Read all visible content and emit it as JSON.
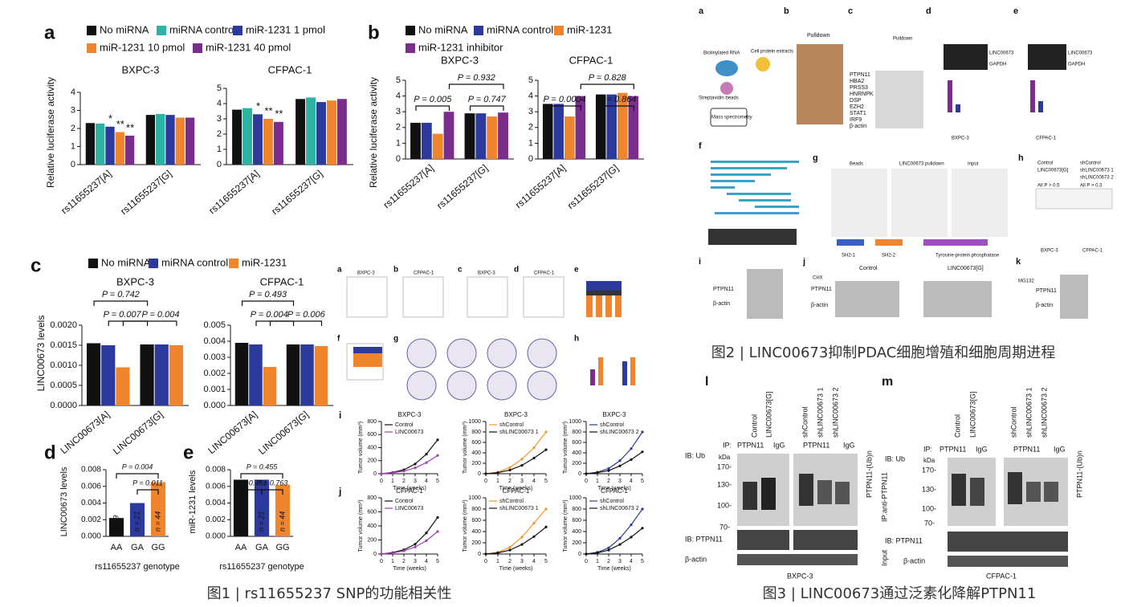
{
  "chart_data": [
    {
      "type": "grouped-bar",
      "label": "a",
      "ylabel": "Relative luciferase activity",
      "categories": [
        "rs11655237[A]",
        "rs11655237[G]"
      ],
      "series": [
        {
          "name": "No miRNA",
          "color": "#111111"
        },
        {
          "name": "miRNA control",
          "color": "#2bb3a3"
        },
        {
          "name": "miR-1231 1 pmol",
          "color": "#2b3a9c"
        },
        {
          "name": "miR-1231 10 pmol",
          "color": "#f0852d"
        },
        {
          "name": "miR-1231 40 pmol",
          "color": "#7a2d8c"
        }
      ],
      "subplots": [
        {
          "title": "BXPC-3",
          "ylim": [
            0,
            4
          ],
          "yticks": [
            0,
            1,
            2,
            3,
            4
          ],
          "values": [
            [
              2.3,
              2.27,
              2.1,
              1.8,
              1.6
            ],
            [
              2.75,
              2.8,
              2.75,
              2.6,
              2.6
            ]
          ],
          "stars": [
            [
              null,
              null,
              "*",
              "**",
              "**"
            ],
            [
              null,
              null,
              null,
              null,
              null
            ]
          ]
        },
        {
          "title": "CFPAC-1",
          "ylim": [
            0,
            5
          ],
          "yticks": [
            0,
            1,
            2,
            3,
            4,
            5
          ],
          "values": [
            [
              3.6,
              3.7,
              3.3,
              3.0,
              2.8
            ],
            [
              4.3,
              4.4,
              4.1,
              4.2,
              4.3
            ]
          ],
          "stars": [
            [
              null,
              null,
              "*",
              "**",
              "**"
            ],
            [
              null,
              null,
              null,
              null,
              null
            ]
          ]
        }
      ]
    },
    {
      "type": "grouped-bar",
      "label": "b",
      "ylabel": "Relative luciferase activity",
      "categories": [
        "rs11655237[A]",
        "rs11655237[G]"
      ],
      "series": [
        {
          "name": "No miRNA",
          "color": "#111111"
        },
        {
          "name": "miRNA control",
          "color": "#2b3a9c"
        },
        {
          "name": "miR-1231",
          "color": "#f0852d"
        },
        {
          "name": "miR-1231 inhibitor",
          "color": "#7a2d8c"
        }
      ],
      "subplots": [
        {
          "title": "BXPC-3",
          "ylim": [
            0,
            5
          ],
          "yticks": [
            0,
            1,
            2,
            3,
            4,
            5
          ],
          "values": [
            [
              2.3,
              2.3,
              1.6,
              3.0
            ],
            [
              2.9,
              2.9,
              2.7,
              2.95
            ]
          ],
          "annotations": [
            "P = 0.005",
            "P = 0.747",
            "P = 0.932"
          ]
        },
        {
          "title": "CFPAC-1",
          "ylim": [
            0,
            5
          ],
          "yticks": [
            0,
            1,
            2,
            3,
            4,
            5
          ],
          "values": [
            [
              3.5,
              3.5,
              2.7,
              4.0
            ],
            [
              4.1,
              4.1,
              4.2,
              4.0
            ]
          ],
          "annotations": [
            "P = 0.0004",
            "P = 0.864",
            "P = 0.828"
          ]
        }
      ]
    },
    {
      "type": "grouped-bar",
      "label": "c",
      "ylabel": "LINC00673 levels",
      "categories": [
        "LINC00673[A]",
        "LINC00673[G]"
      ],
      "series": [
        {
          "name": "No miRNA",
          "color": "#111111"
        },
        {
          "name": "miRNA control",
          "color": "#2b3a9c"
        },
        {
          "name": "miR-1231",
          "color": "#f0852d"
        }
      ],
      "subplots": [
        {
          "title": "BXPC-3",
          "ylim": [
            0,
            0.002
          ],
          "yticks": [
            {
              "value": 0,
              "label": "0.0000"
            },
            0.0005,
            {
              "value": 0.001,
              "label": "0.0010"
            },
            0.0015,
            {
              "value": 0.002,
              "label": "0.0020"
            }
          ],
          "values": [
            [
              0.00155,
              0.0015,
              0.00095
            ],
            [
              0.00152,
              0.00152,
              0.0015
            ]
          ],
          "annotations": [
            "P = 0.742",
            "P = 0.007",
            "P = 0.004"
          ]
        },
        {
          "title": "CFPAC-1",
          "ylim": [
            0,
            0.005
          ],
          "yticks": [
            {
              "value": 0,
              "label": "0.000"
            },
            0.001,
            0.002,
            0.003,
            0.004,
            0.005
          ],
          "values": [
            [
              0.0039,
              0.0038,
              0.0024
            ],
            [
              0.0038,
              0.0038,
              0.0037
            ]
          ],
          "annotations": [
            "P = 0.493",
            "P = 0.004",
            "P = 0.006"
          ]
        }
      ]
    },
    {
      "type": "bar",
      "label": "d",
      "ylabel": "LINC00673 levels",
      "xlabel": "rs11655237 genotype",
      "categories": [
        "AA",
        "GA",
        "GG"
      ],
      "colors": [
        "#111111",
        "#2b3a9c",
        "#f0852d"
      ],
      "values": [
        0.0022,
        0.004,
        0.0065
      ],
      "bar_labels": [
        "n = 9",
        "n = 21",
        "n = 44"
      ],
      "ylim": [
        0,
        0.008
      ],
      "yticks": [
        {
          "value": 0,
          "label": "0.000"
        },
        0.002,
        0.004,
        0.006,
        0.008
      ],
      "annotations": [
        "P = 0.004",
        "P = 0.011"
      ]
    },
    {
      "type": "bar",
      "label": "e",
      "ylabel": "miR-1231 levels",
      "xlabel": "rs11655237 genotype",
      "categories": [
        "AA",
        "GA",
        "GG"
      ],
      "colors": [
        "#111111",
        "#2b3a9c",
        "#f0852d"
      ],
      "values": [
        0.0068,
        0.0068,
        0.0062
      ],
      "bar_labels": [
        "n = 9",
        "n = 21",
        "n = 44"
      ],
      "ylim": [
        0,
        0.008
      ],
      "yticks": [
        {
          "value": 0,
          "label": "0.000"
        },
        0.002,
        0.004,
        0.006,
        0.008
      ],
      "annotations": [
        "P = 0.455",
        "P = 0.751",
        "P = 0.763"
      ]
    },
    {
      "type": "line",
      "title": "BXPC-3",
      "xlabel": "Time (weeks)",
      "ylabel": "Tumor volume (mm³)",
      "x": [
        0,
        1,
        2,
        3,
        4,
        5
      ],
      "xlim": [
        0,
        5
      ],
      "xticks": [
        0,
        1,
        2,
        3,
        4,
        5
      ],
      "ylim": [
        0,
        800
      ],
      "yticks": [
        0,
        200,
        400,
        600,
        800
      ],
      "series": [
        {
          "name": "Control",
          "color": "#111111",
          "values": [
            0,
            20,
            60,
            150,
            300,
            520
          ]
        },
        {
          "name": "LINC00673",
          "color": "#a23fb5",
          "values": [
            0,
            15,
            40,
            90,
            170,
            280
          ]
        }
      ]
    },
    {
      "type": "line",
      "title": "BXPC-3",
      "xlabel": "Time (weeks)",
      "ylabel": "Tumor volume (mm³)",
      "x": [
        0,
        1,
        2,
        3,
        4,
        5
      ],
      "xlim": [
        0,
        5
      ],
      "xticks": [
        0,
        1,
        2,
        3,
        4,
        5
      ],
      "ylim": [
        0,
        1000
      ],
      "yticks": [
        0,
        200,
        400,
        600,
        800,
        1000
      ],
      "series": [
        {
          "name": "shControl",
          "color": "#f0952d",
          "values": [
            0,
            30,
            120,
            280,
            500,
            800
          ]
        },
        {
          "name": "shLINC00673 1",
          "color": "#111111",
          "values": [
            0,
            20,
            70,
            160,
            300,
            460
          ]
        }
      ]
    },
    {
      "type": "line",
      "title": "BXPC-3",
      "xlabel": "Time (weeks)",
      "ylabel": "Tumor volume (mm³)",
      "x": [
        0,
        1,
        2,
        3,
        4,
        5
      ],
      "xlim": [
        0,
        5
      ],
      "xticks": [
        0,
        1,
        2,
        3,
        4,
        5
      ],
      "ylim": [
        0,
        1000
      ],
      "yticks": [
        0,
        200,
        400,
        600,
        800,
        1000
      ],
      "series": [
        {
          "name": "shControl",
          "color": "#2b3a9c",
          "values": [
            0,
            30,
            100,
            250,
            480,
            800
          ]
        },
        {
          "name": "shLINC00673 2",
          "color": "#111111",
          "values": [
            0,
            20,
            60,
            150,
            270,
            420
          ]
        }
      ]
    },
    {
      "type": "line",
      "title": "CFPAC-1",
      "xlabel": "Time (weeks)",
      "ylabel": "Tumor volume (mm³)",
      "x": [
        0,
        1,
        2,
        3,
        4,
        5
      ],
      "xlim": [
        0,
        5
      ],
      "xticks": [
        0,
        1,
        2,
        3,
        4,
        5
      ],
      "ylim": [
        0,
        800
      ],
      "yticks": [
        0,
        200,
        400,
        600,
        800
      ],
      "series": [
        {
          "name": "Control",
          "color": "#111111",
          "values": [
            0,
            20,
            60,
            140,
            300,
            520
          ]
        },
        {
          "name": "LINC00673",
          "color": "#a23fb5",
          "values": [
            0,
            15,
            45,
            100,
            190,
            320
          ]
        }
      ]
    },
    {
      "type": "line",
      "title": "CFPAC-1",
      "xlabel": "Time (weeks)",
      "ylabel": "Tumor volume (mm³)",
      "x": [
        0,
        1,
        2,
        3,
        4,
        5
      ],
      "xlim": [
        0,
        5
      ],
      "xticks": [
        0,
        1,
        2,
        3,
        4,
        5
      ],
      "ylim": [
        0,
        1000
      ],
      "yticks": [
        0,
        200,
        400,
        600,
        800,
        1000
      ],
      "series": [
        {
          "name": "shControl",
          "color": "#f0952d",
          "values": [
            0,
            30,
            120,
            300,
            550,
            800
          ]
        },
        {
          "name": "shLINC00673 1",
          "color": "#111111",
          "values": [
            0,
            20,
            70,
            170,
            310,
            480
          ]
        }
      ]
    },
    {
      "type": "line",
      "title": "CFPAC-1",
      "xlabel": "Time (weeks)",
      "ylabel": "Tumor volume (mm³)",
      "x": [
        0,
        1,
        2,
        3,
        4,
        5
      ],
      "xlim": [
        0,
        5
      ],
      "xticks": [
        0,
        1,
        2,
        3,
        4,
        5
      ],
      "ylim": [
        0,
        1000
      ],
      "yticks": [
        0,
        200,
        400,
        600,
        800,
        1000
      ],
      "series": [
        {
          "name": "shControl",
          "color": "#2b3a9c",
          "values": [
            0,
            30,
            110,
            280,
            520,
            800
          ]
        },
        {
          "name": "shLINC00673 2",
          "color": "#111111",
          "values": [
            0,
            20,
            70,
            170,
            300,
            460
          ]
        }
      ]
    }
  ],
  "figure1": {
    "caption": "图1 | rs11655237 SNP的功能相关性",
    "labels": [
      "a",
      "b",
      "c",
      "d",
      "e",
      "f",
      "g",
      "h",
      "i",
      "j",
      "BXPC-3",
      "CFPAC-1",
      "BXPC-3",
      "CFPAC-1"
    ]
  },
  "figure2": {
    "caption": "图2 | LINC00673抑制PDAC细胞增殖和细胞周期进程",
    "labels": [
      "a",
      "b",
      "c",
      "d",
      "e",
      "f",
      "g",
      "h",
      "i",
      "j",
      "k",
      "Biotinylated RNA",
      "Cell protein extracts",
      "Streptavidin beads",
      "Mass spectrometry",
      "Pulldown",
      "Pulldown",
      "PTPN11",
      "HBA2",
      "PRSS3",
      "HNRNPK",
      "DSP",
      "EZH2",
      "STAT1",
      "IRF9",
      "β-actin",
      "LINC00673",
      "GAPDH",
      "LINC00673",
      "GAPDH",
      "BXPC-3",
      "CFPAC-1",
      "Control",
      "shControl",
      "LINC00673[G]",
      "shLINC00673 1",
      "shLINC00673 2",
      "All P > 0.5",
      "All P > 0.3",
      "BXPC-3",
      "CFPAC-1",
      "Beads",
      "LINC00673 pulldown",
      "Input",
      "SH2-1",
      "SH2-2",
      "Tyrosine-protein phosphatase",
      "Control",
      "LINC00673[G]",
      "CHX",
      "PTPN11",
      "β-actin",
      "PTPN11",
      "β-actin",
      "MG132",
      "PTPN11",
      "β-actin"
    ]
  },
  "figure3": {
    "caption": "图3 | LINC00673通过泛素化降解PTPN11",
    "labels": [
      "l",
      "m",
      "Control",
      "LINC00673[G]",
      "shControl",
      "shLINC00673 1",
      "shLINC00673 2",
      "Control",
      "LINC00673[G]",
      "shControl",
      "shLINC00673 1",
      "shLINC00673 2",
      "IP:",
      "PTPN11",
      "IgG",
      "PTPN11",
      "IgG",
      "IP:",
      "PTPN11",
      "IgG",
      "PTPN11",
      "IgG",
      "IB: Ub",
      "IB: Ub",
      "kDa",
      "170-",
      "130-",
      "100-",
      "70-",
      "kDa",
      "170-",
      "130-",
      "100-",
      "70-",
      "PTPN11-(Ub)n",
      "PTPN11-(Ub)n",
      "IB: PTPN11",
      "IB: PTPN11",
      "β-actin",
      "β-actin",
      "IP:anti-PTPN11",
      "Input",
      "BXPC-3",
      "CFPAC-1"
    ]
  }
}
